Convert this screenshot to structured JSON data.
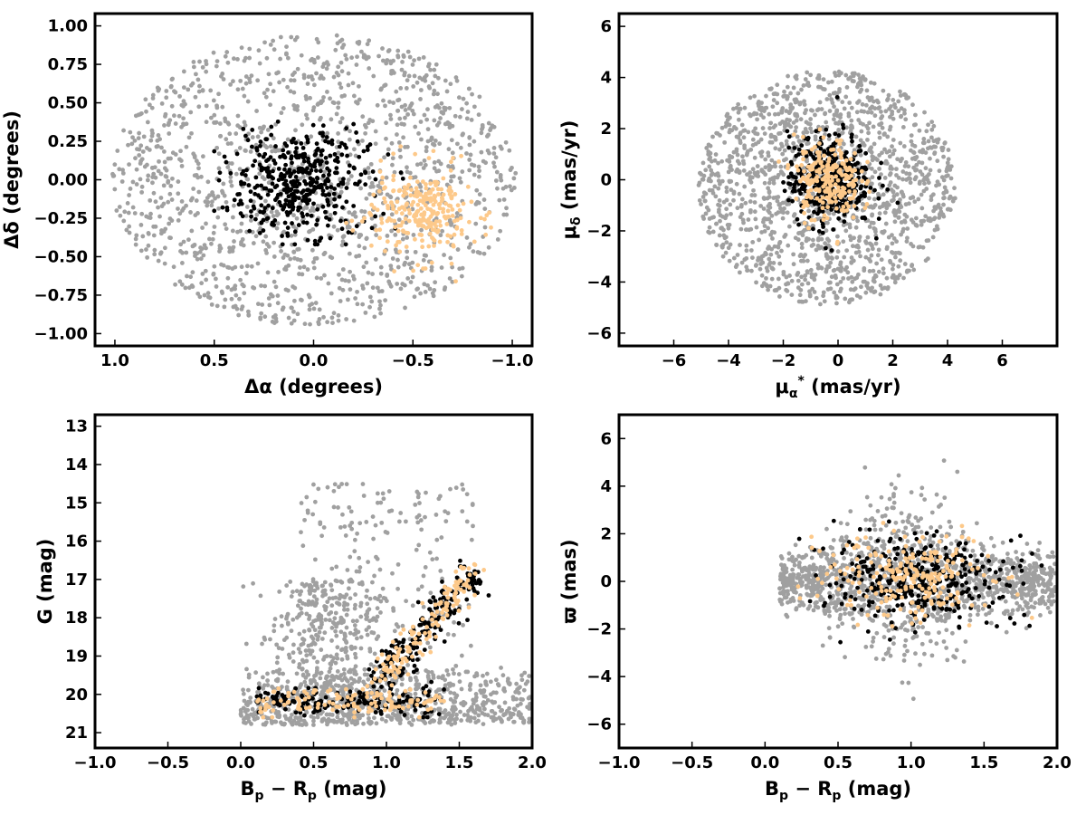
{
  "colors": {
    "field": "#a0a0a0",
    "members_a": "#000000",
    "members_b": "#fdc98a"
  },
  "chart_data": [
    {
      "id": "sky",
      "type": "scatter",
      "xlim": [
        1.1,
        -1.1
      ],
      "ylim": [
        -1.08,
        1.08
      ],
      "xticks": [
        1.0,
        0.5,
        0.0,
        -0.5,
        -1.0
      ],
      "xtick_labels": [
        "1.0",
        "0.5",
        "0.0",
        "−0.5",
        "−1.0"
      ],
      "yticks": [
        1.0,
        0.75,
        0.5,
        0.25,
        0.0,
        -0.25,
        -0.5,
        -0.75,
        -1.0
      ],
      "ytick_labels": [
        "1.00",
        "0.75",
        "0.50",
        "0.25",
        "0.00",
        "−0.25",
        "−0.50",
        "−0.75",
        "−1.00"
      ],
      "xlabel": "Δα (degrees)",
      "ylabel": "Δδ (degrees)",
      "grid": false,
      "series": [
        {
          "color": "#a0a0a0",
          "dist": {
            "kind": "disk",
            "cx": 0.0,
            "cy": 0.0,
            "rx": 1.02,
            "ry": 0.95,
            "n": 1400
          }
        },
        {
          "color": "#000000",
          "dist": {
            "kind": "gauss",
            "cx": 0.07,
            "cy": -0.02,
            "sx": 0.17,
            "sy": 0.17,
            "n": 420,
            "clip": [
              -0.45,
              0.5,
              -0.42,
              0.47
            ]
          }
        },
        {
          "color": "#fdc98a",
          "dist": {
            "kind": "gauss",
            "cx": -0.55,
            "cy": -0.22,
            "sx": 0.13,
            "sy": 0.15,
            "n": 260
          }
        }
      ]
    },
    {
      "id": "pm",
      "type": "scatter",
      "xlim": [
        -8,
        8
      ],
      "ylim": [
        -6.5,
        6.5
      ],
      "xticks": [
        -6,
        -4,
        -2,
        0,
        2,
        4,
        6
      ],
      "xtick_labels": [
        "−6",
        "−4",
        "−2",
        "0",
        "2",
        "4",
        "6"
      ],
      "yticks": [
        6,
        4,
        2,
        0,
        -2,
        -4,
        -6
      ],
      "ytick_labels": [
        "6",
        "4",
        "2",
        "0",
        "−2",
        "−4",
        "−6"
      ],
      "xlabel": "μ",
      "xlabel_sub": "α",
      "xlabel_sup": "*",
      "xlabel_rest": " (mas/yr)",
      "ylabel": "μ",
      "ylabel_sub": "δ",
      "ylabel_rest": " (mas/yr)",
      "grid": false,
      "series": [
        {
          "color": "#a0a0a0",
          "dist": {
            "kind": "disk",
            "cx": -0.4,
            "cy": -0.3,
            "rx": 4.7,
            "ry": 4.6,
            "n": 1500
          }
        },
        {
          "color": "#000000",
          "dist": {
            "kind": "gauss",
            "cx": -0.3,
            "cy": 0.0,
            "sx": 0.75,
            "sy": 0.9,
            "n": 380
          }
        },
        {
          "color": "#fdc98a",
          "dist": {
            "kind": "gauss",
            "cx": -0.4,
            "cy": 0.0,
            "sx": 0.6,
            "sy": 0.8,
            "n": 220
          }
        }
      ]
    },
    {
      "id": "cmd",
      "type": "scatter",
      "xlim": [
        -1.0,
        2.0
      ],
      "ylim": [
        21.4,
        12.7
      ],
      "xticks": [
        -1.0,
        -0.5,
        0.0,
        0.5,
        1.0,
        1.5,
        2.0
      ],
      "xtick_labels": [
        "−1.0",
        "−0.5",
        "0.0",
        "0.5",
        "1.0",
        "1.5",
        "2.0"
      ],
      "yticks": [
        21,
        20,
        19,
        18,
        17,
        16,
        15,
        14,
        13
      ],
      "ytick_labels": [
        "21",
        "20",
        "19",
        "18",
        "17",
        "16",
        "15",
        "14",
        "13"
      ],
      "xlabel": "B",
      "xlabel_sub": "p",
      "xlabel_mid": " − R",
      "xlabel_sub2": "p",
      "xlabel_rest": " (mag)",
      "ylabel": "G (mag)",
      "grid": false,
      "series": [
        {
          "color": "#a0a0a0",
          "dist": {
            "kind": "cmdfield",
            "n": 1300
          }
        },
        {
          "color": "#000000",
          "dist": {
            "kind": "sequence",
            "n": 360
          }
        },
        {
          "color": "#fdc98a",
          "dist": {
            "kind": "sequence",
            "n": 260
          }
        }
      ]
    },
    {
      "id": "plx",
      "type": "scatter",
      "xlim": [
        -1.0,
        2.0
      ],
      "ylim": [
        -7.0,
        7.0
      ],
      "xticks": [
        -1.0,
        -0.5,
        0.0,
        0.5,
        1.0,
        1.5,
        2.0
      ],
      "xtick_labels": [
        "−1.0",
        "−0.5",
        "0.0",
        "0.5",
        "1.0",
        "1.5",
        "2.0"
      ],
      "yticks": [
        6,
        4,
        2,
        0,
        -2,
        -4,
        -6
      ],
      "ytick_labels": [
        "6",
        "4",
        "2",
        "0",
        "−2",
        "−4",
        "−6"
      ],
      "xlabel": "B",
      "xlabel_sub": "p",
      "xlabel_mid": " − R",
      "xlabel_sub2": "p",
      "xlabel_rest": " (mag)",
      "ylabel": "ϖ (mas)",
      "grid": false,
      "series": [
        {
          "color": "#a0a0a0",
          "dist": {
            "kind": "plxfield",
            "n": 1300
          }
        },
        {
          "color": "#000000",
          "dist": {
            "kind": "gauss",
            "cx": 1.05,
            "cy": 0.0,
            "sx": 0.28,
            "sy": 0.9,
            "n": 360
          }
        },
        {
          "color": "#fdc98a",
          "dist": {
            "kind": "gauss",
            "cx": 1.0,
            "cy": 0.1,
            "sx": 0.3,
            "sy": 0.9,
            "n": 220
          }
        }
      ]
    }
  ]
}
